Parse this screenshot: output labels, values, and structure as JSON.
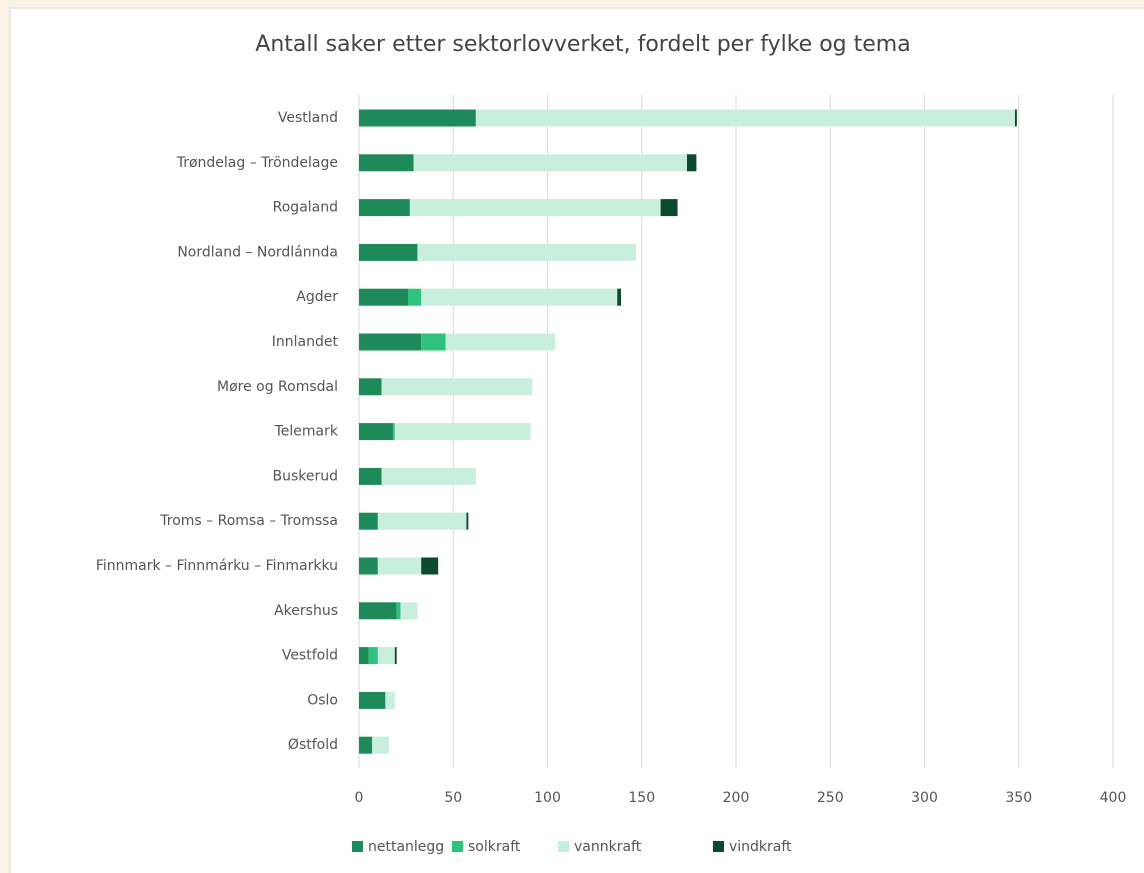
{
  "chart_data": {
    "type": "bar",
    "orientation": "horizontal",
    "stacked": true,
    "title": "Antall saker etter sektorlovverket, fordelt per fylke og tema",
    "categories": [
      "Vestland",
      "Trøndelag – Tröndelage",
      "Rogaland",
      "Nordland – Nordlánnda",
      "Agder",
      "Innlandet",
      "Møre og Romsdal",
      "Telemark",
      "Buskerud",
      "Troms – Romsa – Tromssa",
      "Finnmark – Finnmárku – Finmarkku",
      "Akershus",
      "Vestfold",
      "Oslo",
      "Østfold"
    ],
    "series": [
      {
        "name": "nettanlegg",
        "color": "#1e8a5a",
        "values": [
          62,
          29,
          27,
          31,
          26,
          33,
          12,
          18,
          12,
          10,
          10,
          20,
          5,
          14,
          7
        ]
      },
      {
        "name": "solkraft",
        "color": "#2ec27e",
        "values": [
          0,
          0,
          0,
          0,
          7,
          13,
          0,
          1,
          0,
          0,
          0,
          2,
          5,
          0,
          0
        ]
      },
      {
        "name": "vannkraft",
        "color": "#c8eedd",
        "values": [
          286,
          145,
          133,
          116,
          104,
          58,
          80,
          72,
          50,
          47,
          23,
          9,
          9,
          5,
          9
        ]
      },
      {
        "name": "vindkraft",
        "color": "#0b4a2e",
        "values": [
          1,
          5,
          9,
          0,
          2,
          0,
          0,
          0,
          0,
          1,
          9,
          0,
          1,
          0,
          0
        ]
      }
    ],
    "xlim": [
      0,
      400
    ],
    "xticks": [
      0,
      50,
      100,
      150,
      200,
      250,
      300,
      350,
      400
    ],
    "grid": true,
    "legend": "bottom"
  }
}
